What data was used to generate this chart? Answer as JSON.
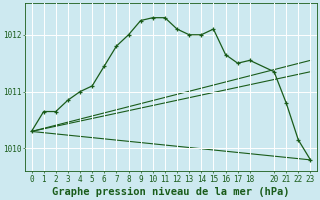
{
  "background_color": "#cde9f0",
  "grid_color": "#ffffff",
  "line_color": "#1a5c1a",
  "title": "Graphe pression niveau de la mer (hPa)",
  "xlim": [
    -0.5,
    23.5
  ],
  "ylim": [
    1009.6,
    1012.55
  ],
  "yticks": [
    1010,
    1011,
    1012
  ],
  "xticks": [
    0,
    1,
    2,
    3,
    4,
    5,
    6,
    7,
    8,
    9,
    10,
    11,
    12,
    13,
    14,
    15,
    16,
    17,
    18,
    20,
    21,
    22,
    23
  ],
  "main_line": {
    "x": [
      0,
      1,
      2,
      3,
      4,
      5,
      6,
      7,
      8,
      9,
      10,
      11,
      12,
      13,
      14,
      15,
      16,
      17,
      18,
      20,
      21,
      22,
      23
    ],
    "y": [
      1010.3,
      1010.65,
      1010.65,
      1010.85,
      1011.0,
      1011.1,
      1011.45,
      1011.8,
      1012.0,
      1012.25,
      1012.3,
      1012.3,
      1012.1,
      1012.0,
      1012.0,
      1012.1,
      1011.65,
      1011.5,
      1011.55,
      1011.35,
      1010.8,
      1010.15,
      1009.8
    ]
  },
  "diag_lines": [
    {
      "x": [
        0,
        23
      ],
      "y": [
        1010.3,
        1011.55
      ]
    },
    {
      "x": [
        0,
        23
      ],
      "y": [
        1010.3,
        1011.35
      ]
    },
    {
      "x": [
        0,
        23
      ],
      "y": [
        1010.3,
        1009.8
      ]
    }
  ],
  "title_fontsize": 7.5,
  "tick_fontsize": 5.5,
  "figsize": [
    3.2,
    2.0
  ],
  "dpi": 100
}
